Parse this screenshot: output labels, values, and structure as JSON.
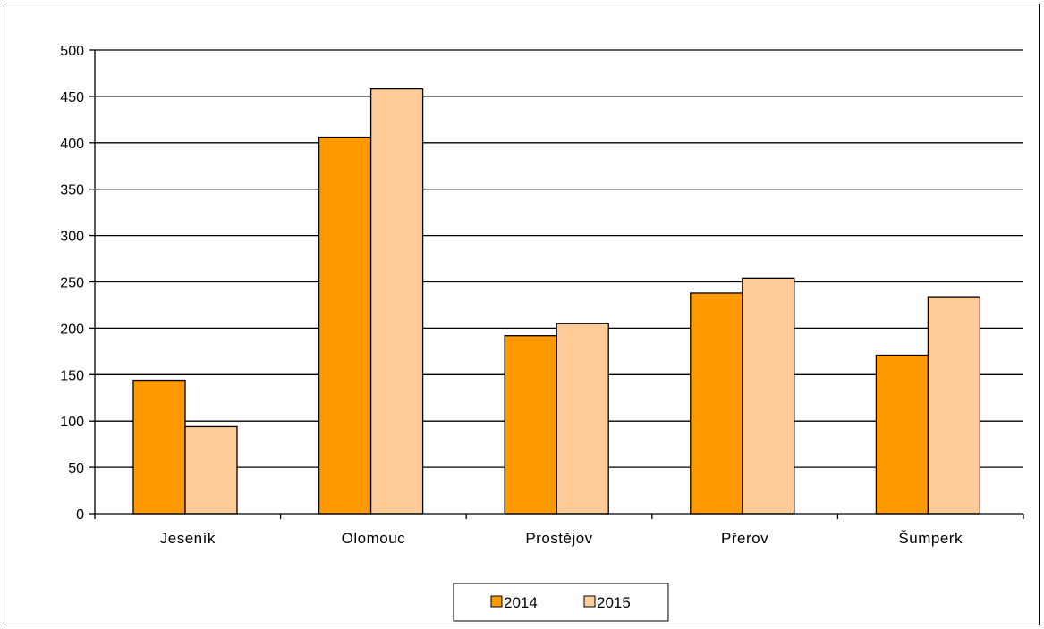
{
  "chart_data": {
    "type": "bar",
    "title": "",
    "xlabel": "",
    "ylabel": "",
    "categories": [
      "Jeseník",
      "Olomouc",
      "Prostějov",
      "Přerov",
      "Šumperk"
    ],
    "series": [
      {
        "name": "2014",
        "values": [
          144,
          406,
          192,
          238,
          171
        ],
        "color": "#FF9900"
      },
      {
        "name": "2015",
        "values": [
          94,
          458,
          205,
          254,
          234
        ],
        "color": "#FFCC99"
      }
    ],
    "ylim": [
      0,
      500
    ],
    "yticks": [
      0,
      50,
      100,
      150,
      200,
      250,
      300,
      350,
      400,
      450,
      500
    ],
    "grid": true,
    "legend_position": "bottom"
  }
}
